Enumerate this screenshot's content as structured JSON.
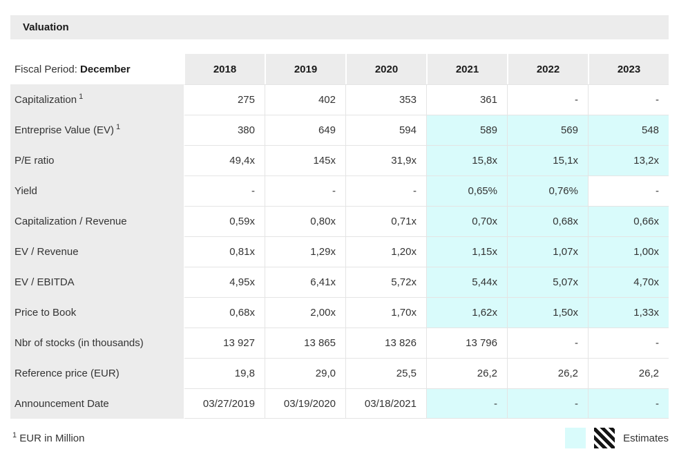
{
  "title_bar": {
    "title": "Valuation"
  },
  "table": {
    "fiscal_period_label": "Fiscal Period:",
    "fiscal_period_value": "December",
    "years": [
      "2018",
      "2019",
      "2020",
      "2021",
      "2022",
      "2023"
    ],
    "rows": [
      {
        "label": "Capitalization",
        "sup": "1",
        "values": [
          "275",
          "402",
          "353",
          "361",
          "-",
          "-"
        ],
        "est": [
          0,
          0,
          0,
          0,
          0,
          0
        ]
      },
      {
        "label": "Entreprise Value (EV)",
        "sup": "1",
        "values": [
          "380",
          "649",
          "594",
          "589",
          "569",
          "548"
        ],
        "est": [
          0,
          0,
          0,
          1,
          1,
          1
        ]
      },
      {
        "label": "P/E ratio",
        "values": [
          "49,4x",
          "145x",
          "31,9x",
          "15,8x",
          "15,1x",
          "13,2x"
        ],
        "est": [
          0,
          0,
          0,
          1,
          1,
          1
        ]
      },
      {
        "label": "Yield",
        "values": [
          "-",
          "-",
          "-",
          "0,65%",
          "0,76%",
          "-"
        ],
        "est": [
          0,
          0,
          0,
          1,
          1,
          0
        ]
      },
      {
        "label": "Capitalization / Revenue",
        "values": [
          "0,59x",
          "0,80x",
          "0,71x",
          "0,70x",
          "0,68x",
          "0,66x"
        ],
        "est": [
          0,
          0,
          0,
          1,
          1,
          1
        ]
      },
      {
        "label": "EV / Revenue",
        "values": [
          "0,81x",
          "1,29x",
          "1,20x",
          "1,15x",
          "1,07x",
          "1,00x"
        ],
        "est": [
          0,
          0,
          0,
          1,
          1,
          1
        ]
      },
      {
        "label": "EV / EBITDA",
        "values": [
          "4,95x",
          "6,41x",
          "5,72x",
          "5,44x",
          "5,07x",
          "4,70x"
        ],
        "est": [
          0,
          0,
          0,
          1,
          1,
          1
        ]
      },
      {
        "label": "Price to Book",
        "values": [
          "0,68x",
          "2,00x",
          "1,70x",
          "1,62x",
          "1,50x",
          "1,33x"
        ],
        "est": [
          0,
          0,
          0,
          1,
          1,
          1
        ]
      },
      {
        "label": "Nbr of stocks (in thousands)",
        "values": [
          "13 927",
          "13 865",
          "13 826",
          "13 796",
          "-",
          "-"
        ],
        "est": [
          0,
          0,
          0,
          0,
          0,
          0
        ]
      },
      {
        "label": "Reference price (EUR)",
        "values": [
          "19,8",
          "29,0",
          "25,5",
          "26,2",
          "26,2",
          "26,2"
        ],
        "est": [
          0,
          0,
          0,
          0,
          0,
          0
        ]
      },
      {
        "label": "Announcement Date",
        "values": [
          "03/27/2019",
          "03/19/2020",
          "03/18/2021",
          "-",
          "-",
          "-"
        ],
        "est": [
          0,
          0,
          0,
          1,
          1,
          1
        ]
      }
    ]
  },
  "footer": {
    "footnote_sup": "1",
    "footnote_text": "EUR in Million",
    "legend_label": "Estimates"
  },
  "colors": {
    "estimate_bg": "#d9fbfb",
    "header_bg": "#ececec",
    "border_color": "#e4e4e4",
    "text_color": "#333333"
  }
}
